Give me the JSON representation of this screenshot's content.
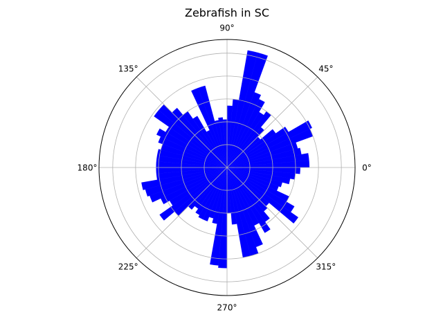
{
  "chart_data": {
    "type": "polar-bar",
    "title": "Zebrafish in SC",
    "theta_tick_labels": [
      "0°",
      "45°",
      "90°",
      "135°",
      "180°",
      "225°",
      "270°",
      "315°"
    ],
    "theta_ticks_deg": [
      0,
      45,
      90,
      135,
      180,
      225,
      270,
      315
    ],
    "radial_grid_values": [
      1,
      2,
      3,
      4,
      5
    ],
    "radial_max": 5.6,
    "radial_tick_labels_visible": false,
    "grid": true,
    "bin_width_deg": 5,
    "bins_start_deg": [
      0,
      5,
      10,
      15,
      20,
      25,
      30,
      35,
      40,
      45,
      50,
      55,
      60,
      65,
      70,
      75,
      80,
      85,
      90,
      95,
      100,
      105,
      110,
      115,
      120,
      125,
      130,
      135,
      140,
      145,
      150,
      155,
      160,
      165,
      170,
      175,
      180,
      185,
      190,
      195,
      200,
      205,
      210,
      215,
      220,
      225,
      230,
      235,
      240,
      245,
      250,
      255,
      260,
      265,
      270,
      275,
      280,
      285,
      290,
      295,
      300,
      305,
      310,
      315,
      320,
      325,
      330,
      335,
      340,
      345,
      350,
      355
    ],
    "values": [
      3.6,
      3.6,
      3.3,
      3.2,
      4.0,
      4.1,
      3.1,
      2.6,
      1.9,
      2.3,
      3.0,
      2.8,
      3.3,
      3.5,
      5.2,
      5.2,
      3.0,
      2.7,
      2.1,
      2.2,
      2.1,
      3.7,
      3.7,
      1.8,
      2.6,
      3.0,
      3.4,
      3.9,
      3.9,
      3.1,
      3.4,
      3.2,
      3.0,
      3.1,
      3.1,
      3.1,
      3.1,
      3.1,
      3.8,
      3.7,
      3.6,
      3.2,
      2.9,
      3.6,
      3.0,
      2.4,
      2.2,
      2.4,
      2.5,
      2.5,
      2.3,
      2.5,
      4.3,
      4.4,
      2.0,
      2.5,
      4.0,
      4.0,
      3.7,
      2.8,
      3.3,
      2.9,
      2.5,
      2.4,
      3.8,
      3.4,
      3.0,
      2.4,
      2.5,
      2.8,
      3.0,
      3.2
    ],
    "bar_color": "#0000ff",
    "grid_color": "#b0b0b0",
    "frame_color": "#000000"
  }
}
